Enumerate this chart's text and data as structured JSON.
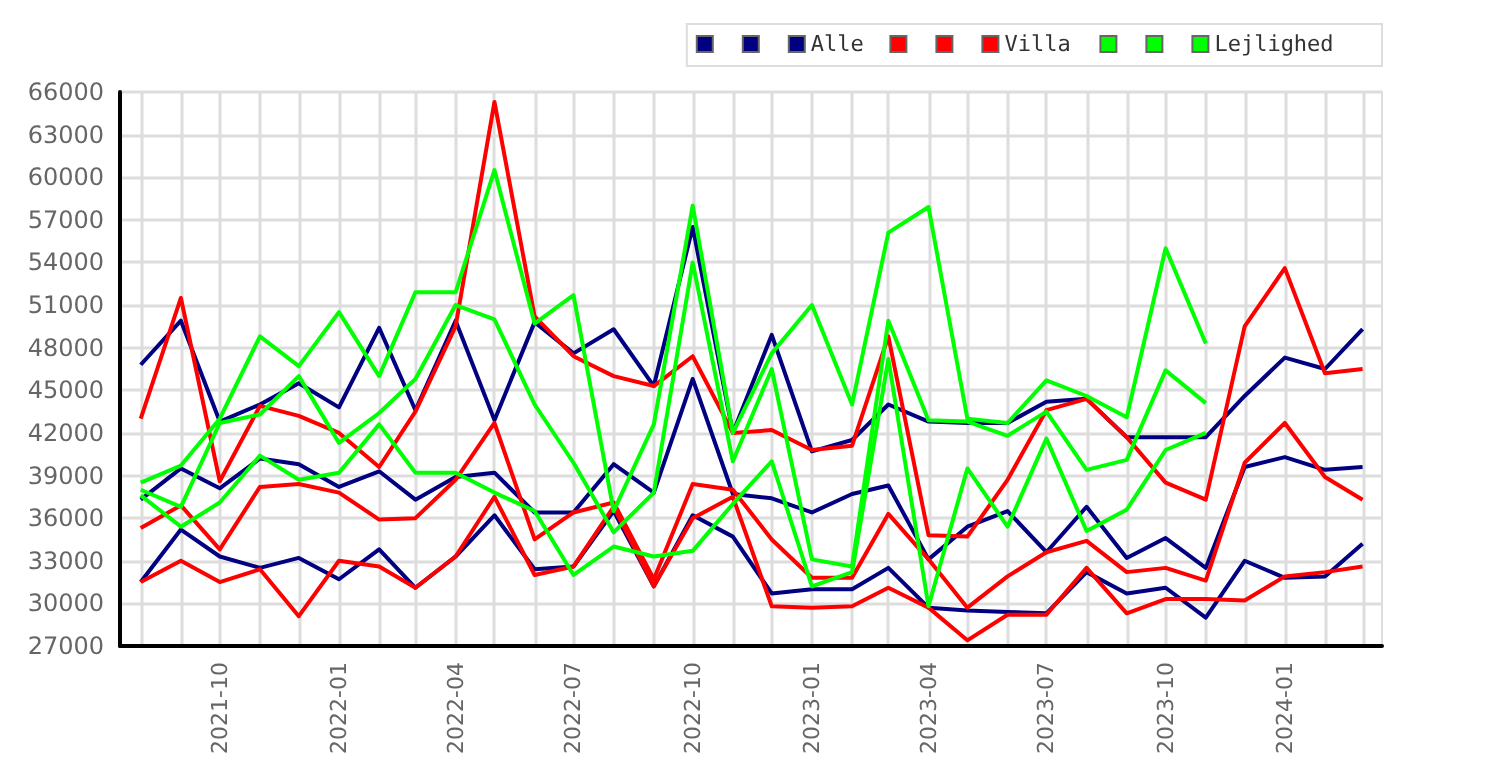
{
  "chart_data": {
    "type": "line",
    "x": [
      "2021-08",
      "2021-09",
      "2021-10",
      "2021-11",
      "2021-12",
      "2022-01",
      "2022-02",
      "2022-03",
      "2022-04",
      "2022-05",
      "2022-06",
      "2022-07",
      "2022-08",
      "2022-09",
      "2022-10",
      "2022-11",
      "2022-12",
      "2023-01",
      "2023-02",
      "2023-03",
      "2023-04",
      "2023-05",
      "2023-06",
      "2023-07",
      "2023-08",
      "2023-09",
      "2023-10",
      "2023-11",
      "2023-12",
      "2024-01",
      "2024-02",
      "2024-03"
    ],
    "series": [
      {
        "color": "#000080",
        "values": [
          31500,
          35200,
          33300,
          32500,
          33200,
          31700,
          33800,
          31100,
          33300,
          36200,
          32400,
          32600,
          36500,
          31200,
          36200,
          34700,
          30700,
          31000,
          31000,
          32500,
          29700,
          29500,
          29400,
          29300,
          32200,
          30700,
          31100,
          29000,
          33000,
          31800,
          31900,
          34200
        ]
      },
      {
        "color": "#000080",
        "values": [
          37300,
          39500,
          38100,
          40200,
          39800,
          38200,
          39300,
          37300,
          38900,
          39200,
          36400,
          36400,
          39800,
          37800,
          45800,
          37700,
          37400,
          36400,
          37700,
          38300,
          33100,
          35400,
          36500,
          33600,
          36800,
          33200,
          34600,
          32500,
          39600,
          40300,
          39400,
          39600
        ]
      },
      {
        "name": "Alle",
        "color": "#000080",
        "values": [
          46800,
          49900,
          42800,
          44000,
          45500,
          43800,
          49400,
          43600,
          49900,
          42900,
          49800,
          47600,
          49300,
          45300,
          56500,
          42000,
          48900,
          40700,
          41500,
          44000,
          42800,
          42700,
          42700,
          44200,
          44400,
          41700,
          41700,
          41700,
          44600,
          47300,
          46500,
          49300
        ]
      },
      {
        "color": "#ff0000",
        "values": [
          31500,
          33000,
          31500,
          32400,
          29100,
          33000,
          32600,
          31100,
          33300,
          37500,
          32000,
          32600,
          36800,
          31200,
          36000,
          37500,
          29800,
          29700,
          29800,
          31100,
          29700,
          27400,
          29200,
          29200,
          32500,
          29300,
          30300,
          30300,
          30200,
          31900,
          32200,
          32600
        ]
      },
      {
        "color": "#ff0000",
        "values": [
          35300,
          36900,
          33800,
          38200,
          38400,
          37800,
          35900,
          36000,
          38700,
          42700,
          34500,
          36400,
          37100,
          31700,
          38400,
          38000,
          34500,
          31800,
          31800,
          36300,
          33100,
          29700,
          31900,
          33600,
          34400,
          32200,
          32500,
          31600,
          39900,
          42700,
          38900,
          37300
        ]
      },
      {
        "name": "Villa",
        "color": "#ff0000",
        "values": [
          43000,
          51500,
          38600,
          43900,
          43200,
          42000,
          39600,
          43500,
          49500,
          65300,
          50200,
          47400,
          46000,
          45300,
          47400,
          42000,
          42200,
          40800,
          41100,
          48800,
          34800,
          34700,
          38700,
          43600,
          44400,
          41700,
          38500,
          37300,
          49500,
          53600,
          46200,
          46500
        ]
      },
      {
        "color": "#00ff00",
        "values": [
          37600,
          35400,
          37100,
          40400,
          38700,
          39200,
          42600,
          39200,
          39200,
          37800,
          36500,
          32000,
          34000,
          33300,
          33700,
          37000,
          40000,
          31200,
          32200,
          47200,
          29800,
          39500,
          35400,
          41600,
          35100,
          36600,
          40800,
          42000,
          null,
          null,
          null,
          null
        ]
      },
      {
        "color": "#00ff00",
        "values": [
          38000,
          36800,
          42700,
          43300,
          46000,
          41300,
          43400,
          45800,
          51000,
          50000,
          44000,
          39900,
          35000,
          37800,
          54000,
          40000,
          46500,
          33100,
          32600,
          49900,
          42900,
          42800,
          41800,
          43500,
          39400,
          40100,
          46400,
          44100,
          null,
          null,
          null,
          null
        ]
      },
      {
        "name": "Lejlighed",
        "color": "#00ff00",
        "values": [
          38500,
          39700,
          43000,
          48800,
          46700,
          50500,
          46000,
          51900,
          51900,
          60500,
          49700,
          51700,
          36500,
          42600,
          58000,
          42000,
          47600,
          51000,
          44000,
          56100,
          57900,
          43000,
          42700,
          45700,
          44600,
          43100,
          55000,
          48300,
          null,
          null,
          null,
          null
        ]
      }
    ],
    "xlim": [
      "2021-07-16",
      "2024-03-16"
    ],
    "xticks": [
      {
        "value": "2021-08",
        "label": null
      },
      {
        "value": "2021-09",
        "label": null
      },
      "2021-10",
      {
        "value": "2021-11",
        "label": null
      },
      {
        "value": "2021-12",
        "label": null
      },
      "2022-01",
      {
        "value": "2022-02",
        "label": null
      },
      {
        "value": "2022-03",
        "label": null
      },
      "2022-04",
      {
        "value": "2022-05",
        "label": null
      },
      {
        "value": "2022-06",
        "label": null
      },
      "2022-07",
      {
        "value": "2022-08",
        "label": null
      },
      {
        "value": "2022-09",
        "label": null
      },
      "2022-10",
      {
        "value": "2022-11",
        "label": null
      },
      {
        "value": "2022-12",
        "label": null
      },
      "2023-01",
      {
        "value": "2023-02",
        "label": null
      },
      {
        "value": "2023-03",
        "label": null
      },
      "2023-04",
      {
        "value": "2023-05",
        "label": null
      },
      {
        "value": "2023-06",
        "label": null
      },
      "2023-07",
      {
        "value": "2023-08",
        "label": null
      },
      {
        "value": "2023-09",
        "label": null
      },
      "2023-10",
      {
        "value": "2023-11",
        "label": null
      },
      {
        "value": "2023-12",
        "label": null
      },
      "2024-01",
      {
        "value": "2024-02",
        "label": null
      },
      {
        "value": "2024-03",
        "label": null
      }
    ],
    "ylim": [
      27000,
      66000
    ],
    "yticks": [
      27000,
      30000,
      33000,
      36000,
      39000,
      42000,
      45000,
      48000,
      51000,
      54000,
      57000,
      60000,
      63000,
      66000
    ],
    "grid": true,
    "legend": "top right",
    "marker": "none",
    "line_style": "solid"
  }
}
